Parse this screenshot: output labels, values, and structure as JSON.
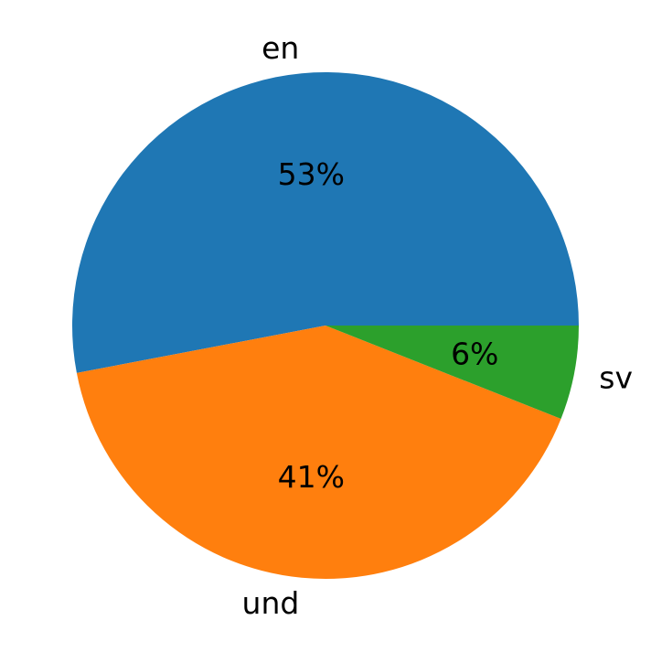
{
  "chart_data": {
    "type": "pie",
    "categories": [
      "en",
      "und",
      "sv"
    ],
    "values": [
      53,
      41,
      6
    ],
    "value_labels": [
      "53%",
      "41%",
      "6%"
    ],
    "colors": [
      "#1f77b4",
      "#ff7f0e",
      "#2ca02c"
    ],
    "start": "east",
    "direction": "counterclockwise",
    "title": ""
  }
}
